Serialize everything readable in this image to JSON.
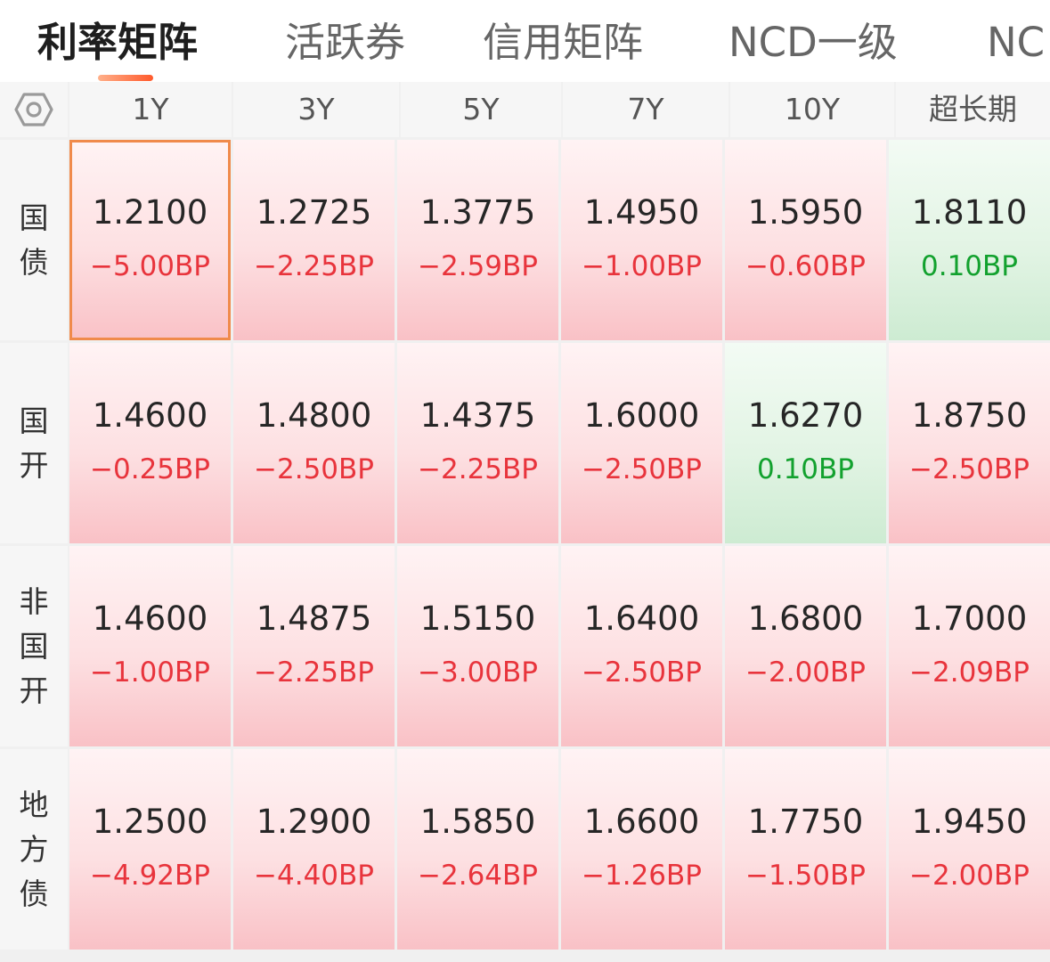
{
  "tabs": [
    "利率矩阵",
    "活跃券",
    "信用矩阵",
    "NCD一级",
    "NC"
  ],
  "active_tab": 0,
  "columns": [
    "1Y",
    "3Y",
    "5Y",
    "7Y",
    "10Y",
    "超长期"
  ],
  "icons": {
    "settings": "settings-hexagon-icon"
  },
  "colors": {
    "down": "#e8343c",
    "up": "#12a12e",
    "accent": "#ff5a2c"
  },
  "rows": [
    {
      "label": [
        "国",
        "债"
      ],
      "cells": [
        {
          "value": "1.2100",
          "change": "−5.00BP",
          "dir": "down",
          "selected": true
        },
        {
          "value": "1.2725",
          "change": "−2.25BP",
          "dir": "down"
        },
        {
          "value": "1.3775",
          "change": "−2.59BP",
          "dir": "down"
        },
        {
          "value": "1.4950",
          "change": "−1.00BP",
          "dir": "down"
        },
        {
          "value": "1.5950",
          "change": "−0.60BP",
          "dir": "down"
        },
        {
          "value": "1.8110",
          "change": "0.10BP",
          "dir": "up"
        }
      ]
    },
    {
      "label": [
        "国",
        "开"
      ],
      "cells": [
        {
          "value": "1.4600",
          "change": "−0.25BP",
          "dir": "down"
        },
        {
          "value": "1.4800",
          "change": "−2.50BP",
          "dir": "down"
        },
        {
          "value": "1.4375",
          "change": "−2.25BP",
          "dir": "down"
        },
        {
          "value": "1.6000",
          "change": "−2.50BP",
          "dir": "down"
        },
        {
          "value": "1.6270",
          "change": "0.10BP",
          "dir": "up"
        },
        {
          "value": "1.8750",
          "change": "−2.50BP",
          "dir": "down"
        }
      ]
    },
    {
      "label": [
        "非",
        "国",
        "开"
      ],
      "cells": [
        {
          "value": "1.4600",
          "change": "−1.00BP",
          "dir": "down"
        },
        {
          "value": "1.4875",
          "change": "−2.25BP",
          "dir": "down"
        },
        {
          "value": "1.5150",
          "change": "−3.00BP",
          "dir": "down"
        },
        {
          "value": "1.6400",
          "change": "−2.50BP",
          "dir": "down"
        },
        {
          "value": "1.6800",
          "change": "−2.00BP",
          "dir": "down"
        },
        {
          "value": "1.7000",
          "change": "−2.09BP",
          "dir": "down"
        }
      ]
    },
    {
      "label": [
        "地",
        "方",
        "债"
      ],
      "cells": [
        {
          "value": "1.2500",
          "change": "−4.92BP",
          "dir": "down"
        },
        {
          "value": "1.2900",
          "change": "−4.40BP",
          "dir": "down"
        },
        {
          "value": "1.5850",
          "change": "−2.64BP",
          "dir": "down"
        },
        {
          "value": "1.6600",
          "change": "−1.26BP",
          "dir": "down"
        },
        {
          "value": "1.7750",
          "change": "−1.50BP",
          "dir": "down"
        },
        {
          "value": "1.9450",
          "change": "−2.00BP",
          "dir": "down"
        }
      ]
    }
  ]
}
